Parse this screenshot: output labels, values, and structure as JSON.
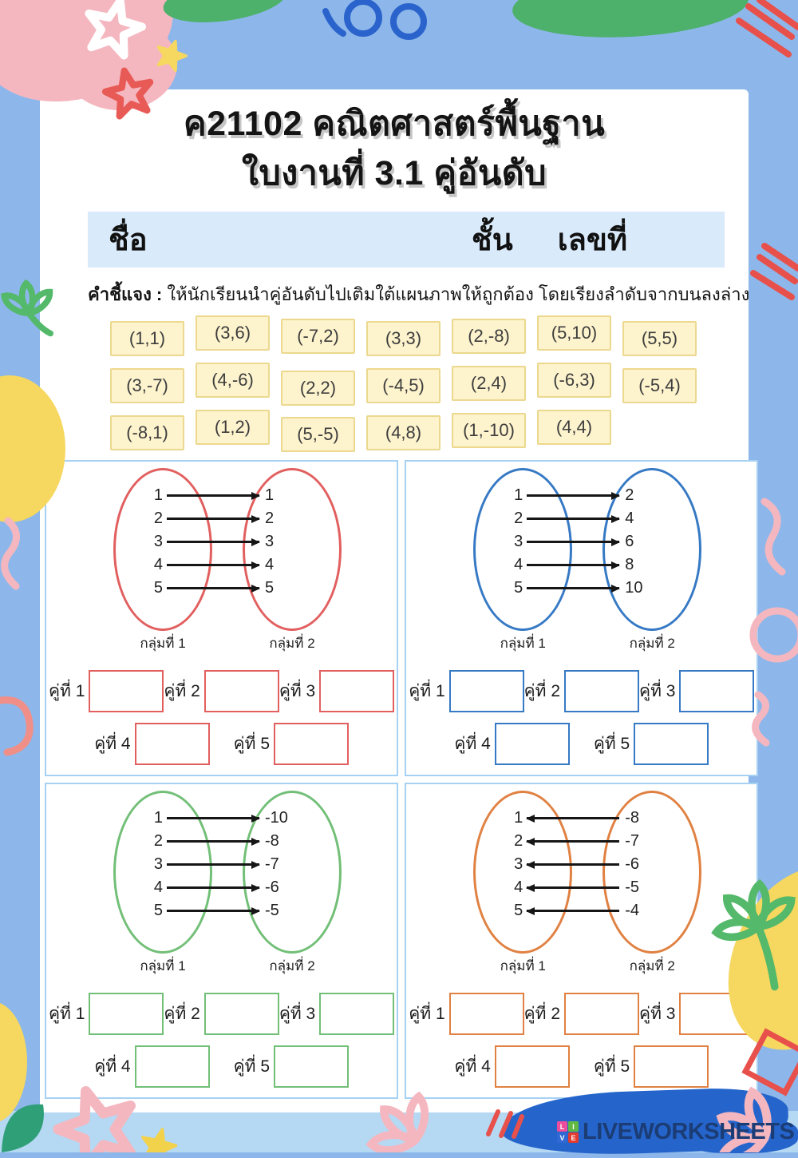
{
  "title": {
    "line1": "ค21102 คณิตศาสตร์พื้นฐาน",
    "line2": "ใบงานที่ 3.1 คู่อันดับ"
  },
  "student_bar": {
    "name_label": "ชื่อ",
    "class_label": "ชั้น",
    "number_label": "เลขที่"
  },
  "instructions": {
    "prefix": "คำชี้แจง :",
    "text": " ให้นักเรียนนำคู่อันดับไปเติมใต้แผนภาพให้ถูกต้อง โดยเรียงลำดับจากบนลงล่าง"
  },
  "pair_chips": {
    "rows": [
      [
        "(1,1)",
        "(3,6)",
        "(-7,2)",
        "(3,3)",
        "(2,-8)",
        "(5,10)",
        "(5,5)"
      ],
      [
        "(3,-7)",
        "(4,-6)",
        "(2,2)",
        "(-4,5)",
        "(2,4)",
        "(-6,3)",
        "(-5,4)"
      ],
      [
        "(-8,1)",
        "(1,2)",
        "(5,-5)",
        "(4,8)",
        "(1,-10)",
        "(4,4)"
      ]
    ],
    "chip_bg": "#fdf3cd",
    "chip_border": "#ecd88e"
  },
  "diagrams": [
    {
      "color": "#e25f5f",
      "arrow_direction": "right",
      "group1_label": "กลุ่มที่ 1",
      "group2_label": "กลุ่มที่ 2",
      "mappings": [
        [
          "1",
          "1"
        ],
        [
          "2",
          "2"
        ],
        [
          "3",
          "3"
        ],
        [
          "4",
          "4"
        ],
        [
          "5",
          "5"
        ]
      ],
      "pair_labels": [
        "คู่ที่ 1",
        "คู่ที่ 2",
        "คู่ที่ 3",
        "คู่ที่ 4",
        "คู่ที่ 5"
      ]
    },
    {
      "color": "#3679c4",
      "arrow_direction": "right",
      "group1_label": "กลุ่มที่ 1",
      "group2_label": "กลุ่มที่ 2",
      "mappings": [
        [
          "1",
          "2"
        ],
        [
          "2",
          "4"
        ],
        [
          "3",
          "6"
        ],
        [
          "4",
          "8"
        ],
        [
          "5",
          "10"
        ]
      ],
      "pair_labels": [
        "คู่ที่ 1",
        "คู่ที่ 2",
        "คู่ที่ 3",
        "คู่ที่ 4",
        "คู่ที่ 5"
      ]
    },
    {
      "color": "#72bf77",
      "arrow_direction": "right",
      "group1_label": "กลุ่มที่ 1",
      "group2_label": "กลุ่มที่ 2",
      "mappings": [
        [
          "1",
          "-10"
        ],
        [
          "2",
          "-8"
        ],
        [
          "3",
          "-7"
        ],
        [
          "4",
          "-6"
        ],
        [
          "5",
          "-5"
        ]
      ],
      "pair_labels": [
        "คู่ที่ 1",
        "คู่ที่ 2",
        "คู่ที่ 3",
        "คู่ที่ 4",
        "คู่ที่ 5"
      ]
    },
    {
      "color": "#e08142",
      "arrow_direction": "left",
      "group1_label": "กลุ่มที่ 1",
      "group2_label": "กลุ่มที่ 2",
      "mappings": [
        [
          "1",
          "-8"
        ],
        [
          "2",
          "-7"
        ],
        [
          "3",
          "-6"
        ],
        [
          "4",
          "-5"
        ],
        [
          "5",
          "-4"
        ]
      ],
      "pair_labels": [
        "คู่ที่ 1",
        "คู่ที่ 2",
        "คู่ที่ 3",
        "คู่ที่ 4",
        "คู่ที่ 5"
      ]
    }
  ],
  "footer": {
    "brand": "LIVEWORKSHEETS",
    "brand_color": "#1b3c74",
    "logo_letters": [
      {
        "letter": "L",
        "color": "#ee4d9b"
      },
      {
        "letter": "I",
        "color": "#61b944"
      },
      {
        "letter": "V",
        "color": "#3069d4"
      },
      {
        "letter": "E",
        "color": "#e53a2e"
      }
    ]
  },
  "colors": {
    "page_frame": "#8db7ea",
    "card_bg": "#ffffff",
    "student_bar_bg": "#d9eafb",
    "quad_border": "#a6d1f3",
    "bottom_band": "#b5d8f3",
    "brush_stroke": "#2565cb"
  }
}
